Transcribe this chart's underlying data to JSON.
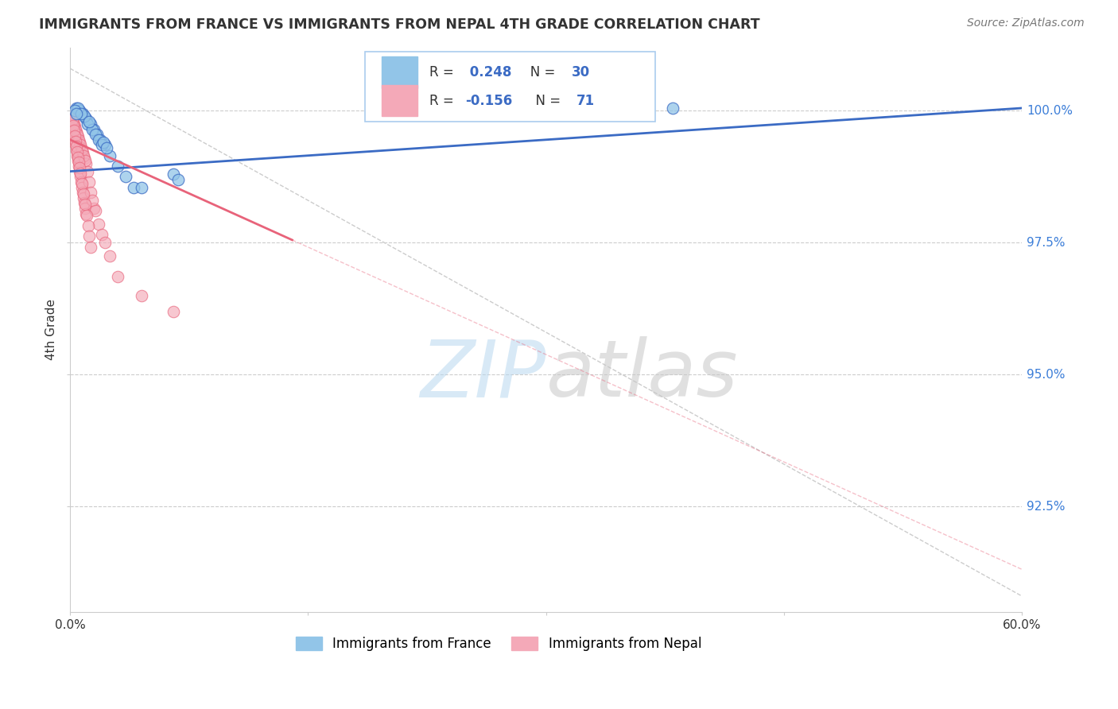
{
  "title": "IMMIGRANTS FROM FRANCE VS IMMIGRANTS FROM NEPAL 4TH GRADE CORRELATION CHART",
  "source": "Source: ZipAtlas.com",
  "ylabel": "4th Grade",
  "xlim": [
    0.0,
    60.0
  ],
  "ylim": [
    90.5,
    101.2
  ],
  "y_ticks": [
    92.5,
    95.0,
    97.5,
    100.0
  ],
  "legend_france": "Immigrants from France",
  "legend_nepal": "Immigrants from Nepal",
  "R_france": 0.248,
  "N_france": 30,
  "R_nepal": -0.156,
  "N_nepal": 71,
  "color_france": "#92C5E8",
  "color_nepal": "#F4A9B8",
  "color_trendline_france": "#3B6BC4",
  "color_trendline_nepal": "#E8637A",
  "france_trend_x0": 0.0,
  "france_trend_y0": 98.85,
  "france_trend_x1": 60.0,
  "france_trend_y1": 100.05,
  "nepal_trend_x0": 0.0,
  "nepal_trend_y0": 99.45,
  "nepal_trend_x1": 14.0,
  "nepal_trend_y1": 97.55,
  "diag_x0": 0.0,
  "diag_y0": 100.8,
  "diag_x1": 60.0,
  "diag_y1": 90.8,
  "france_x": [
    0.4,
    0.8,
    1.0,
    1.3,
    1.5,
    1.7,
    1.9,
    2.2,
    2.5,
    3.0,
    3.5,
    4.0,
    1.1,
    1.4,
    1.6,
    1.8,
    2.0,
    0.6,
    0.9,
    0.5,
    6.5,
    6.8,
    38.0,
    0.3,
    0.7,
    1.2,
    2.1,
    2.3,
    0.4,
    4.5
  ],
  "france_y": [
    100.05,
    99.95,
    99.85,
    99.75,
    99.65,
    99.55,
    99.45,
    99.35,
    99.15,
    98.95,
    98.75,
    98.55,
    99.75,
    99.65,
    99.55,
    99.45,
    99.35,
    100.0,
    99.9,
    100.05,
    98.8,
    98.7,
    100.05,
    100.0,
    99.95,
    99.8,
    99.4,
    99.3,
    99.95,
    98.55
  ],
  "nepal_x": [
    0.05,
    0.1,
    0.15,
    0.2,
    0.25,
    0.3,
    0.35,
    0.4,
    0.45,
    0.5,
    0.55,
    0.6,
    0.65,
    0.7,
    0.75,
    0.8,
    0.85,
    0.9,
    0.95,
    1.0,
    0.1,
    0.2,
    0.3,
    0.4,
    0.5,
    0.6,
    0.7,
    0.8,
    0.9,
    1.0,
    0.15,
    0.25,
    0.35,
    0.45,
    0.55,
    0.65,
    0.75,
    0.85,
    0.95,
    1.1,
    1.2,
    1.3,
    1.5,
    1.8,
    2.0,
    2.5,
    3.0,
    1.4,
    1.6,
    2.2,
    0.08,
    0.12,
    0.18,
    0.22,
    0.28,
    0.32,
    0.38,
    0.42,
    0.48,
    0.52,
    0.58,
    0.62,
    0.72,
    0.82,
    0.92,
    1.02,
    1.12,
    1.22,
    1.32,
    4.5,
    6.5
  ],
  "nepal_y": [
    99.95,
    99.85,
    99.75,
    99.65,
    99.55,
    99.45,
    99.35,
    99.25,
    99.15,
    99.05,
    98.95,
    98.85,
    98.75,
    98.65,
    98.55,
    98.45,
    98.35,
    98.25,
    98.15,
    98.05,
    99.9,
    99.8,
    99.7,
    99.6,
    99.5,
    99.4,
    99.3,
    99.2,
    99.1,
    99.0,
    99.85,
    99.75,
    99.65,
    99.55,
    99.45,
    99.35,
    99.25,
    99.15,
    99.05,
    98.85,
    98.65,
    98.45,
    98.15,
    97.85,
    97.65,
    97.25,
    96.85,
    98.3,
    98.1,
    97.5,
    99.9,
    99.82,
    99.72,
    99.62,
    99.52,
    99.42,
    99.32,
    99.22,
    99.12,
    99.02,
    98.92,
    98.82,
    98.62,
    98.42,
    98.22,
    98.02,
    97.82,
    97.62,
    97.42,
    96.5,
    96.2
  ]
}
